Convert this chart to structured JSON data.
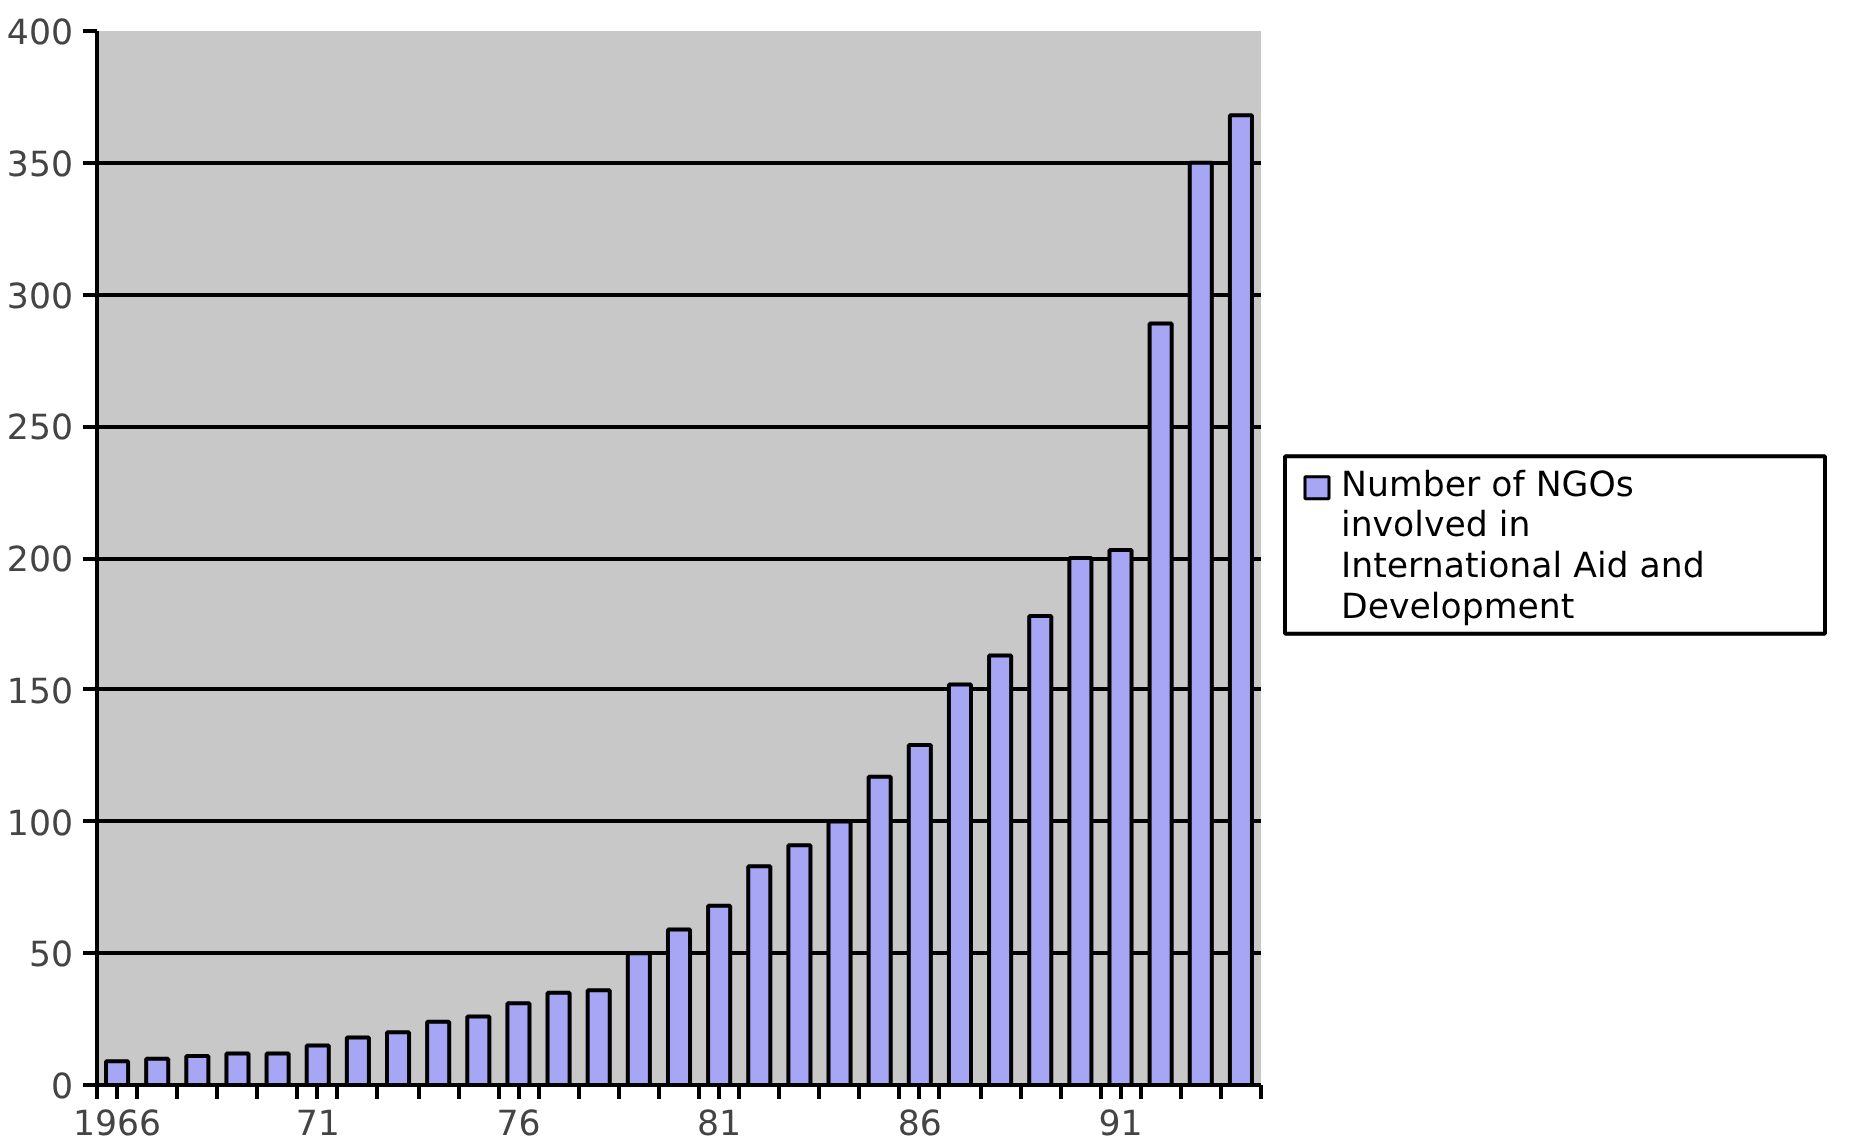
{
  "chart_data": {
    "type": "bar",
    "categories": [
      "1966",
      null,
      null,
      null,
      null,
      "71",
      null,
      null,
      null,
      null,
      "76",
      null,
      null,
      null,
      null,
      "81",
      null,
      null,
      null,
      null,
      "86",
      null,
      null,
      null,
      null,
      "91",
      null,
      null,
      null
    ],
    "series": [
      {
        "name": "Number of NGOs involved in International Aid and Development",
        "color": "#a6a6f5",
        "values": [
          9,
          10,
          11,
          12,
          12,
          15,
          18,
          20,
          24,
          26,
          31,
          35,
          36,
          50,
          59,
          68,
          83,
          91,
          100,
          117,
          129,
          152,
          163,
          178,
          200,
          203,
          289,
          350,
          368
        ]
      }
    ],
    "ylim": [
      0,
      400
    ],
    "yticks": [
      0,
      50,
      100,
      150,
      200,
      250,
      300,
      350,
      400
    ],
    "grid": "y",
    "legend": "right"
  }
}
